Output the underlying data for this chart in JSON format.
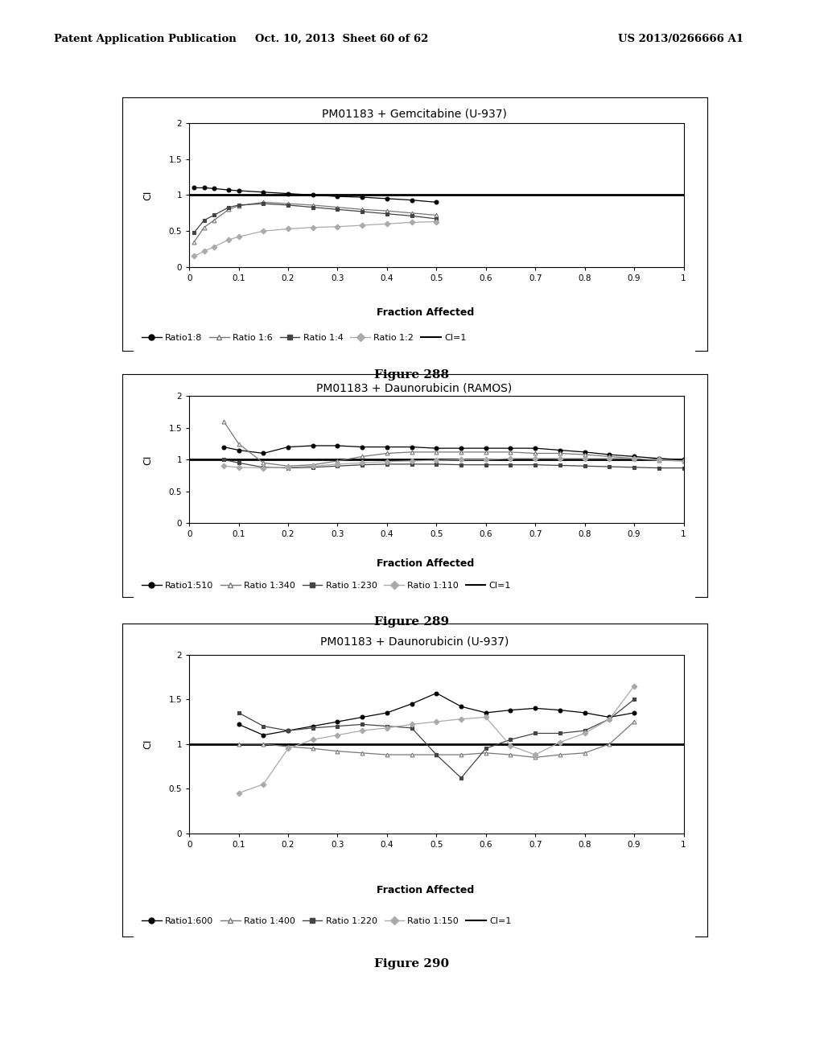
{
  "header_left": "Patent Application Publication",
  "header_mid": "Oct. 10, 2013  Sheet 60 of 62",
  "header_right": "US 2013/0266666 A1",
  "fig288": {
    "title": "PM01183 + Gemcitabine (U-937)",
    "xlabel": "Fraction Affected",
    "ylabel": "CI",
    "ylim": [
      0,
      2
    ],
    "xlim": [
      0,
      1
    ],
    "yticks": [
      0,
      0.5,
      1,
      1.5,
      2
    ],
    "xticks": [
      0,
      0.1,
      0.2,
      0.3,
      0.4,
      0.5,
      0.6,
      0.7,
      0.8,
      0.9,
      1
    ],
    "legend": [
      "Ratio1:8",
      "Ratio 1:6",
      "Ratio 1:4",
      "Ratio 1:2",
      "CI=1"
    ],
    "figcaption": "Figure 288",
    "series": {
      "ratio18": {
        "x": [
          0.01,
          0.03,
          0.05,
          0.08,
          0.1,
          0.15,
          0.2,
          0.25,
          0.3,
          0.35,
          0.4,
          0.45,
          0.5
        ],
        "y": [
          1.1,
          1.1,
          1.09,
          1.07,
          1.06,
          1.04,
          1.02,
          1.0,
          0.98,
          0.97,
          0.95,
          0.93,
          0.9
        ],
        "color": "#000000",
        "marker": "o",
        "linestyle": "-",
        "mfc": "#000000"
      },
      "ratio16": {
        "x": [
          0.01,
          0.03,
          0.05,
          0.08,
          0.1,
          0.15,
          0.2,
          0.25,
          0.3,
          0.35,
          0.4,
          0.45,
          0.5
        ],
        "y": [
          0.35,
          0.55,
          0.65,
          0.8,
          0.85,
          0.9,
          0.88,
          0.86,
          0.83,
          0.8,
          0.78,
          0.75,
          0.72
        ],
        "color": "#777777",
        "marker": "^",
        "linestyle": "-",
        "mfc": "white"
      },
      "ratio14": {
        "x": [
          0.01,
          0.03,
          0.05,
          0.08,
          0.1,
          0.15,
          0.2,
          0.25,
          0.3,
          0.35,
          0.4,
          0.45,
          0.5
        ],
        "y": [
          0.48,
          0.65,
          0.72,
          0.83,
          0.86,
          0.88,
          0.86,
          0.83,
          0.8,
          0.77,
          0.74,
          0.71,
          0.67
        ],
        "color": "#444444",
        "marker": "s",
        "linestyle": "-",
        "mfc": "#444444"
      },
      "ratio12": {
        "x": [
          0.01,
          0.03,
          0.05,
          0.08,
          0.1,
          0.15,
          0.2,
          0.25,
          0.3,
          0.35,
          0.4,
          0.45,
          0.5
        ],
        "y": [
          0.15,
          0.22,
          0.28,
          0.38,
          0.42,
          0.5,
          0.53,
          0.55,
          0.56,
          0.58,
          0.6,
          0.62,
          0.63
        ],
        "color": "#aaaaaa",
        "marker": "D",
        "linestyle": "-",
        "mfc": "#aaaaaa"
      }
    }
  },
  "fig289": {
    "title": "PM01183 + Daunorubicin (RAMOS)",
    "xlabel": "Fraction Affected",
    "ylabel": "CI",
    "ylim": [
      0,
      2
    ],
    "xlim": [
      0,
      1
    ],
    "yticks": [
      0,
      0.5,
      1,
      1.5,
      2
    ],
    "xticks": [
      0,
      0.1,
      0.2,
      0.3,
      0.4,
      0.5,
      0.6,
      0.7,
      0.8,
      0.9,
      1
    ],
    "legend": [
      "Ratio1:510",
      "Ratio 1:340",
      "Ratio 1:230",
      "Ratio 1:110",
      "CI=1"
    ],
    "figcaption": "Figure 289",
    "series": {
      "ratio1510": {
        "x": [
          0.07,
          0.1,
          0.15,
          0.2,
          0.25,
          0.3,
          0.35,
          0.4,
          0.45,
          0.5,
          0.55,
          0.6,
          0.65,
          0.7,
          0.75,
          0.8,
          0.85,
          0.9,
          0.95,
          1.0
        ],
        "y": [
          1.2,
          1.15,
          1.1,
          1.2,
          1.22,
          1.22,
          1.2,
          1.2,
          1.2,
          1.18,
          1.18,
          1.18,
          1.18,
          1.18,
          1.15,
          1.12,
          1.08,
          1.05,
          1.02,
          1.0
        ],
        "color": "#000000",
        "marker": "o",
        "linestyle": "-",
        "mfc": "#000000"
      },
      "ratio1340": {
        "x": [
          0.07,
          0.1,
          0.15,
          0.2,
          0.25,
          0.3,
          0.35,
          0.4,
          0.45,
          0.5,
          0.55,
          0.6,
          0.65,
          0.7,
          0.75,
          0.8,
          0.85,
          0.9,
          0.95,
          1.0
        ],
        "y": [
          1.6,
          1.25,
          0.95,
          0.9,
          0.92,
          0.98,
          1.05,
          1.1,
          1.12,
          1.12,
          1.12,
          1.12,
          1.12,
          1.1,
          1.1,
          1.08,
          1.05,
          1.02,
          0.99,
          0.98
        ],
        "color": "#777777",
        "marker": "^",
        "linestyle": "-",
        "mfc": "white"
      },
      "ratio1230": {
        "x": [
          0.07,
          0.1,
          0.15,
          0.2,
          0.25,
          0.3,
          0.35,
          0.4,
          0.45,
          0.5,
          0.55,
          0.6,
          0.65,
          0.7,
          0.75,
          0.8,
          0.85,
          0.9,
          0.95,
          1.0
        ],
        "y": [
          1.0,
          0.95,
          0.88,
          0.87,
          0.88,
          0.9,
          0.92,
          0.93,
          0.93,
          0.93,
          0.92,
          0.92,
          0.92,
          0.92,
          0.91,
          0.9,
          0.89,
          0.88,
          0.87,
          0.87
        ],
        "color": "#444444",
        "marker": "s",
        "linestyle": "-",
        "mfc": "#444444"
      },
      "ratio1110": {
        "x": [
          0.07,
          0.1,
          0.15,
          0.2,
          0.25,
          0.3,
          0.35,
          0.4,
          0.45,
          0.5,
          0.55,
          0.6,
          0.65,
          0.7,
          0.75,
          0.8,
          0.85,
          0.9,
          0.95,
          1.0
        ],
        "y": [
          0.9,
          0.88,
          0.87,
          0.88,
          0.9,
          0.93,
          0.95,
          0.97,
          0.98,
          0.99,
          1.0,
          1.0,
          1.02,
          1.02,
          1.02,
          1.02,
          1.02,
          1.02,
          1.0,
          0.98
        ],
        "color": "#aaaaaa",
        "marker": "D",
        "linestyle": "-",
        "mfc": "#aaaaaa"
      }
    }
  },
  "fig290": {
    "title": "PM01183 + Daunorubicin (U-937)",
    "xlabel": "Fraction Affected",
    "ylabel": "CI",
    "ylim": [
      0,
      2
    ],
    "xlim": [
      0,
      1
    ],
    "yticks": [
      0,
      0.5,
      1,
      1.5,
      2
    ],
    "xticks": [
      0,
      0.1,
      0.2,
      0.3,
      0.4,
      0.5,
      0.6,
      0.7,
      0.8,
      0.9,
      1
    ],
    "legend": [
      "Ratio1:600",
      "Ratio 1:400",
      "Ratio 1:220",
      "Ratio 1:150",
      "CI=1"
    ],
    "figcaption": "Figure 290",
    "series": {
      "ratio1600": {
        "x": [
          0.1,
          0.15,
          0.2,
          0.25,
          0.3,
          0.35,
          0.4,
          0.45,
          0.5,
          0.55,
          0.6,
          0.65,
          0.7,
          0.75,
          0.8,
          0.85,
          0.9
        ],
        "y": [
          1.22,
          1.1,
          1.15,
          1.2,
          1.25,
          1.3,
          1.35,
          1.45,
          1.57,
          1.42,
          1.35,
          1.38,
          1.4,
          1.38,
          1.35,
          1.3,
          1.35
        ],
        "color": "#000000",
        "marker": "o",
        "linestyle": "-",
        "mfc": "#000000"
      },
      "ratio1400": {
        "x": [
          0.1,
          0.15,
          0.2,
          0.25,
          0.3,
          0.35,
          0.4,
          0.45,
          0.5,
          0.55,
          0.6,
          0.65,
          0.7,
          0.75,
          0.8,
          0.85,
          0.9
        ],
        "y": [
          1.0,
          1.0,
          0.97,
          0.95,
          0.92,
          0.9,
          0.88,
          0.88,
          0.88,
          0.88,
          0.9,
          0.88,
          0.85,
          0.88,
          0.9,
          1.0,
          1.25
        ],
        "color": "#777777",
        "marker": "^",
        "linestyle": "-",
        "mfc": "white"
      },
      "ratio1220": {
        "x": [
          0.1,
          0.15,
          0.2,
          0.25,
          0.3,
          0.35,
          0.4,
          0.45,
          0.5,
          0.55,
          0.6,
          0.65,
          0.7,
          0.75,
          0.8,
          0.85,
          0.9
        ],
        "y": [
          1.35,
          1.2,
          1.15,
          1.18,
          1.2,
          1.22,
          1.2,
          1.18,
          0.88,
          0.62,
          0.95,
          1.05,
          1.12,
          1.12,
          1.15,
          1.28,
          1.5
        ],
        "color": "#444444",
        "marker": "s",
        "linestyle": "-",
        "mfc": "#444444"
      },
      "ratio1150": {
        "x": [
          0.1,
          0.15,
          0.2,
          0.25,
          0.3,
          0.35,
          0.4,
          0.45,
          0.5,
          0.55,
          0.6,
          0.65,
          0.7,
          0.75,
          0.8,
          0.85,
          0.9
        ],
        "y": [
          0.45,
          0.55,
          0.95,
          1.05,
          1.1,
          1.15,
          1.18,
          1.22,
          1.25,
          1.28,
          1.3,
          0.98,
          0.88,
          1.02,
          1.12,
          1.28,
          1.65
        ],
        "color": "#aaaaaa",
        "marker": "D",
        "linestyle": "-",
        "mfc": "#aaaaaa"
      }
    }
  }
}
